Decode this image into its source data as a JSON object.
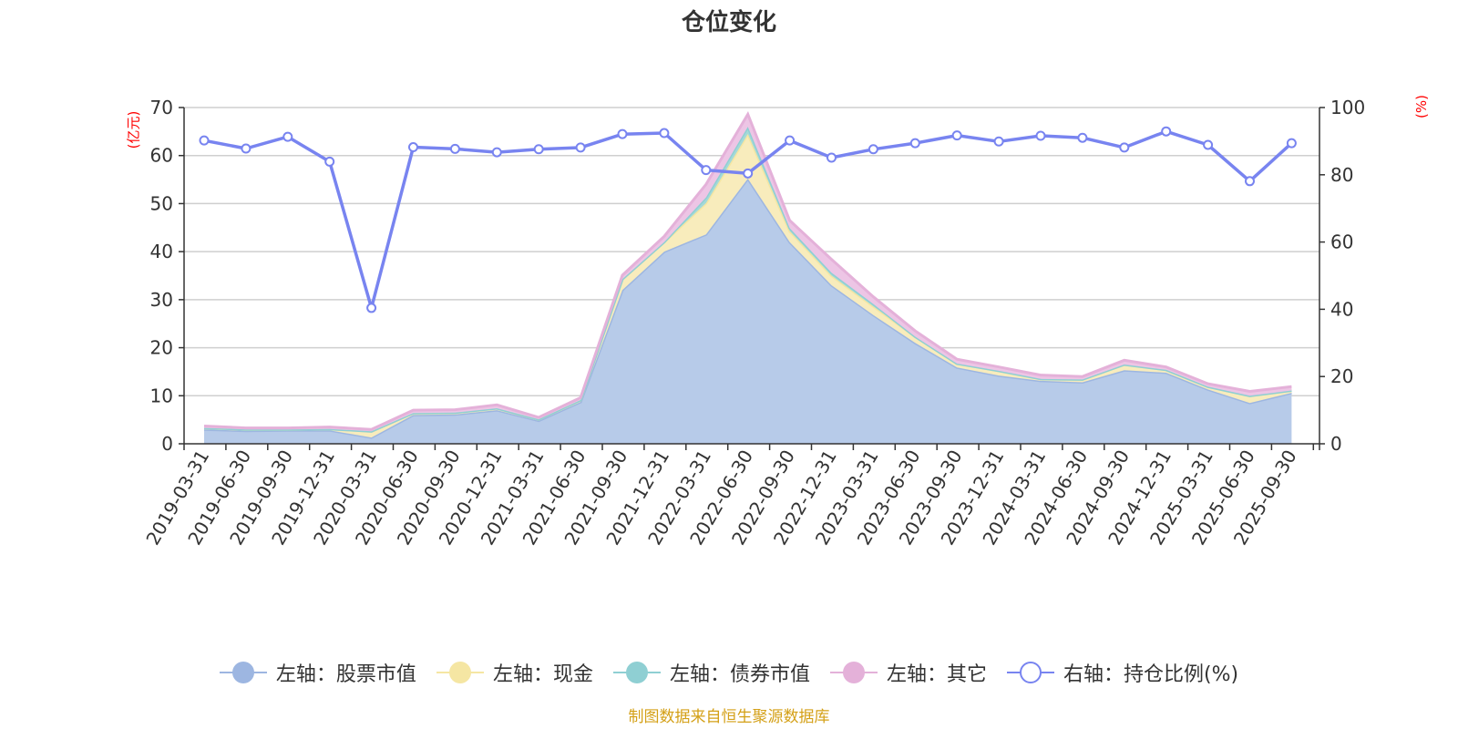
{
  "chart_data": {
    "type": "area",
    "title": "仓位变化",
    "left_axis_unit": "(亿元)",
    "right_axis_unit": "(%)",
    "ylim_left": [
      0,
      70
    ],
    "yticks_left": [
      0,
      10,
      20,
      30,
      40,
      50,
      60,
      70
    ],
    "ylim_right": [
      0,
      100
    ],
    "yticks_right": [
      0,
      20,
      40,
      60,
      80,
      100
    ],
    "grid": true,
    "legend_position": "bottom",
    "categories": [
      "2019-03-31",
      "2019-06-30",
      "2019-09-30",
      "2019-12-31",
      "2020-03-31",
      "2020-06-30",
      "2020-09-30",
      "2020-12-31",
      "2021-03-31",
      "2021-06-30",
      "2021-09-30",
      "2021-12-31",
      "2022-03-31",
      "2022-06-30",
      "2022-09-30",
      "2022-12-31",
      "2023-03-31",
      "2023-06-30",
      "2023-09-30",
      "2023-12-31",
      "2024-03-31",
      "2024-06-30",
      "2024-09-30",
      "2024-12-31",
      "2025-03-31",
      "2025-06-30",
      "2025-09-30"
    ],
    "series": [
      {
        "name": "左轴：股票市值",
        "axis": "left",
        "stacked": true,
        "color": "#9db6e1",
        "fill": "#b7cbe9",
        "values": [
          3.0,
          2.7,
          2.8,
          2.8,
          1.3,
          6.0,
          6.1,
          7.0,
          4.8,
          8.7,
          32.0,
          40.0,
          43.6,
          55.2,
          42.0,
          33.0,
          26.8,
          21.0,
          15.9,
          14.2,
          13.1,
          12.8,
          15.3,
          14.8,
          11.3,
          8.5,
          10.6
        ]
      },
      {
        "name": "左轴：现金",
        "axis": "left",
        "stacked": true,
        "color": "#f5e6a3",
        "fill": "#f8ecbc",
        "values": [
          0.3,
          0.3,
          0.2,
          0.3,
          1.3,
          0.4,
          0.4,
          0.4,
          0.3,
          0.4,
          2.3,
          2.0,
          6.5,
          9.3,
          2.3,
          2.0,
          1.8,
          1.3,
          0.8,
          1.0,
          0.4,
          0.6,
          1.2,
          0.6,
          0.6,
          1.5,
          0.5
        ]
      },
      {
        "name": "左轴：债券市值",
        "axis": "left",
        "stacked": true,
        "color": "#8fcfd3",
        "fill": "#a4d9d8",
        "values": [
          0,
          0,
          0,
          0,
          0,
          0,
          0,
          0,
          0,
          0,
          0,
          0,
          1.2,
          1.5,
          0.6,
          0.6,
          0.5,
          0,
          0,
          0,
          0,
          0,
          0,
          0,
          0,
          0,
          0
        ]
      },
      {
        "name": "左轴：其它",
        "axis": "left",
        "stacked": true,
        "color": "#e4b1d9",
        "fill": "#edc5e5",
        "values": [
          0.4,
          0.3,
          0.3,
          0.4,
          0.4,
          0.6,
          0.6,
          0.7,
          0.4,
          0.5,
          0.8,
          1.2,
          2.7,
          2.6,
          1.6,
          2.8,
          1.5,
          1.2,
          0.9,
          0.8,
          0.8,
          0.6,
          0.9,
          0.6,
          0.6,
          0.9,
          0.8
        ]
      },
      {
        "name": "右轴：持仓比例(%)",
        "axis": "right",
        "type": "line",
        "color": "#7884f0",
        "values": [
          90.2,
          87.8,
          91.3,
          83.9,
          40.4,
          88.2,
          87.7,
          86.7,
          87.6,
          88.1,
          92.1,
          92.4,
          81.4,
          80.4,
          90.2,
          85.1,
          87.6,
          89.4,
          91.7,
          89.9,
          91.6,
          91.0,
          88.1,
          92.9,
          88.9,
          78.1,
          89.4
        ]
      }
    ]
  },
  "legend": {
    "items": [
      {
        "label": "左轴：股票市值",
        "color": "#9db6e1",
        "hollow": false
      },
      {
        "label": "左轴：现金",
        "color": "#f5e6a3",
        "hollow": false
      },
      {
        "label": "左轴：债券市值",
        "color": "#8fcfd3",
        "hollow": false
      },
      {
        "label": "左轴：其它",
        "color": "#e4b1d9",
        "hollow": false
      },
      {
        "label": "右轴：持仓比例(%)",
        "color": "#7884f0",
        "hollow": true
      }
    ]
  },
  "footer": {
    "text": "制图数据来自恒生聚源数据库"
  }
}
